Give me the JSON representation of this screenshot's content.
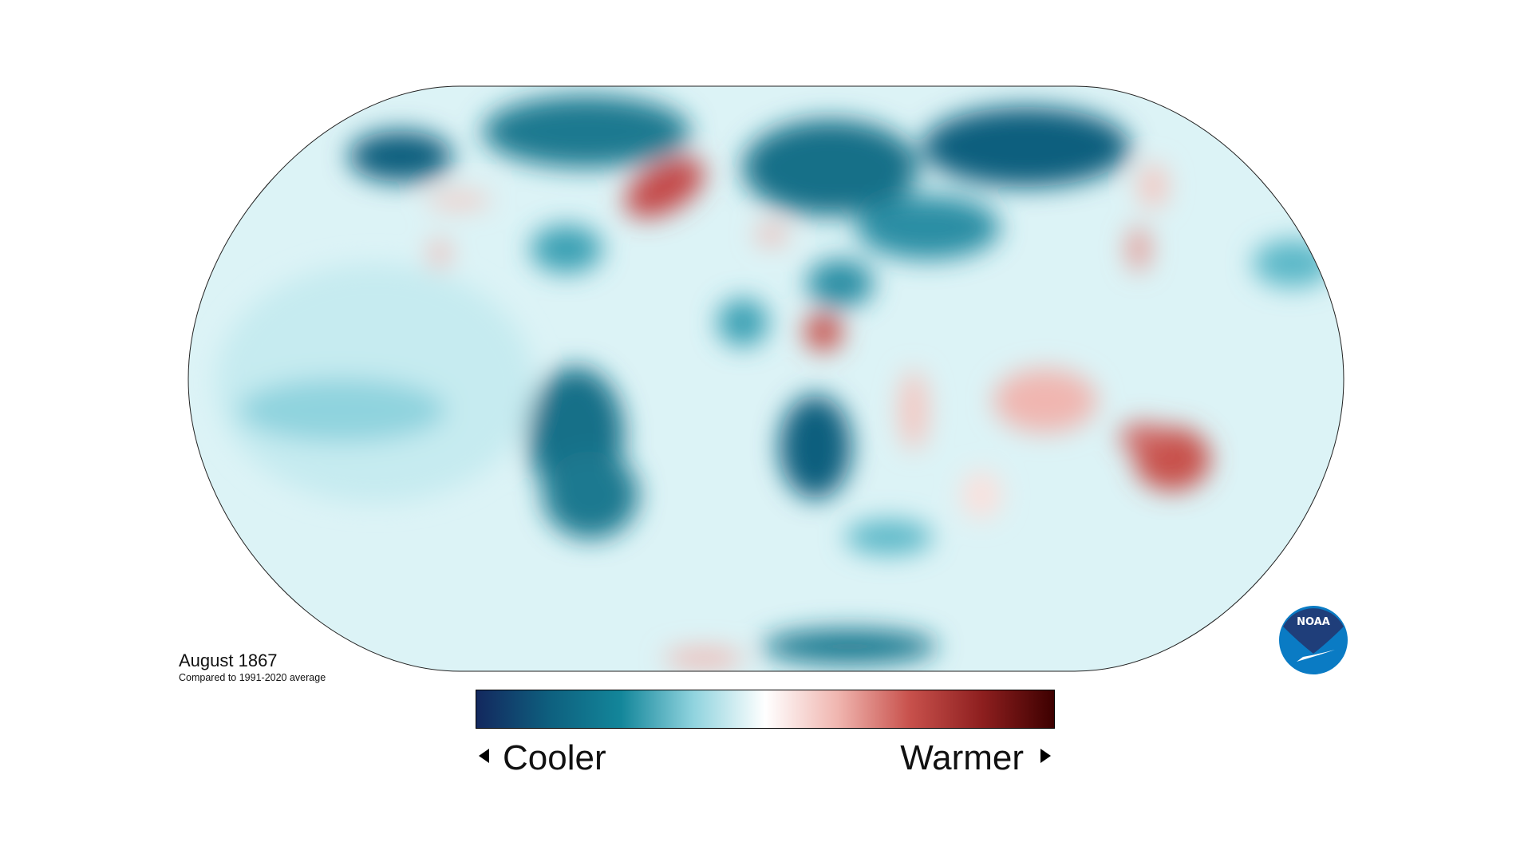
{
  "title": "August 1867",
  "subtitle": "Compared to 1991-2020 average",
  "legend": {
    "cooler_label": "Cooler",
    "warmer_label": "Warmer",
    "colors": [
      "#13285e",
      "#0e5f7e",
      "#13869a",
      "#8fd3de",
      "#ffffff",
      "#f0b6b0",
      "#c8514c",
      "#8e1f1f",
      "#3d0000"
    ]
  },
  "logo": {
    "text": "NOAA",
    "colors": {
      "top": "#1f3e7a",
      "bottom": "#0a7bc4"
    }
  },
  "map": {
    "projection": "Robinson",
    "base_color": "#dcf3f6",
    "outline_color": "#222222"
  }
}
